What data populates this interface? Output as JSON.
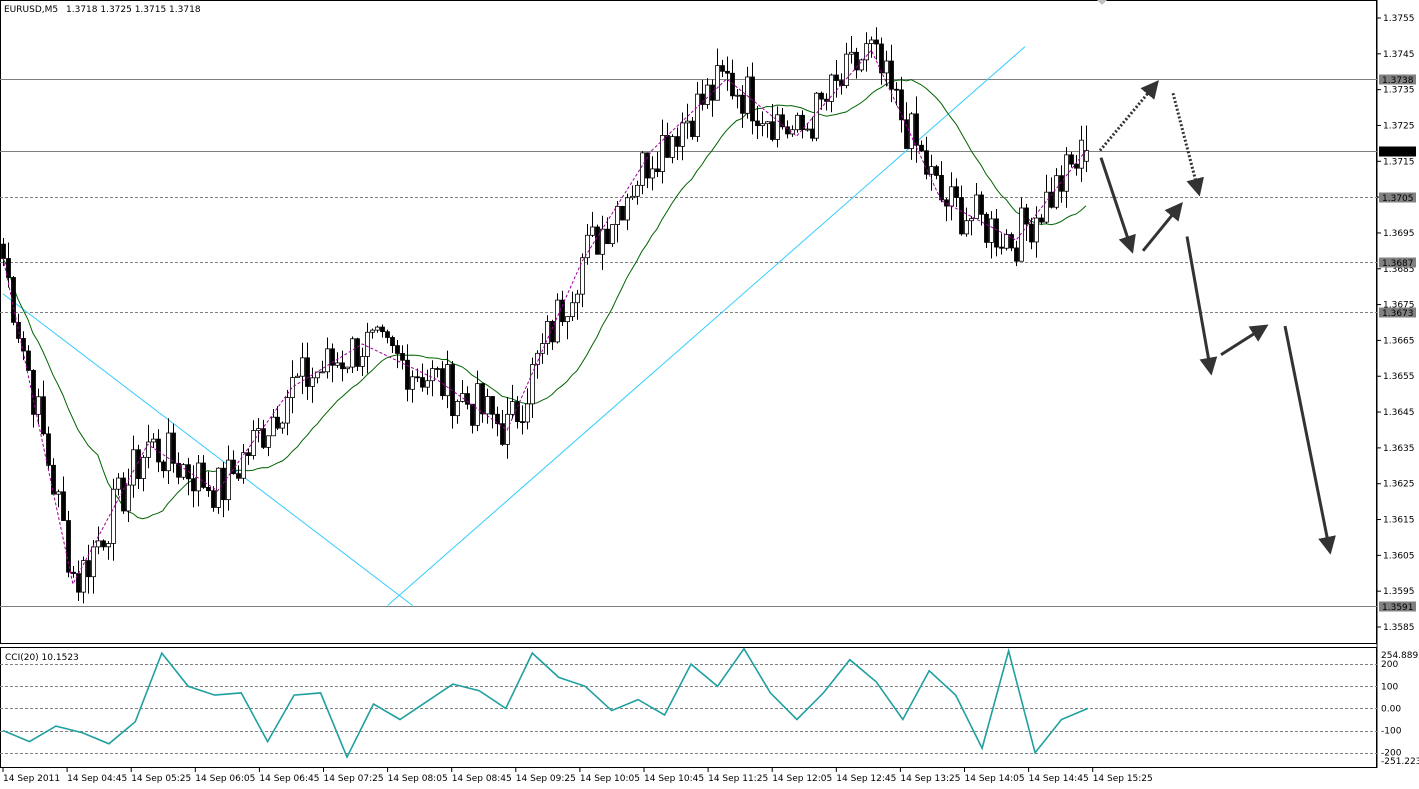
{
  "header": {
    "symbol": "EURUSD,M5",
    "ohlc": "1.3718 1.3725 1.3715 1.3718"
  },
  "indicator": {
    "label": "CCI(20) 10.1523",
    "max_label": "254.8892",
    "min_label": "-251.223"
  },
  "colors": {
    "bull_fill": "#ffffff",
    "bear_fill": "#000000",
    "candle_outline": "#000000",
    "zigzag": "#a000a0",
    "ma": "#006400",
    "trendline": "#33ccff",
    "cci": "#20a0a0",
    "hline": "#808080",
    "arrow": "#333333"
  },
  "chart_data": [
    {
      "type": "candlestick",
      "title": "EURUSD,M5",
      "ylim": [
        1.3585,
        1.3758
      ],
      "yticks": [
        "1.3755",
        "1.3745",
        "1.3735",
        "1.3725",
        "1.3715",
        "1.3705",
        "1.3695",
        "1.3685",
        "1.3675",
        "1.3665",
        "1.3655",
        "1.3645",
        "1.3635",
        "1.3625",
        "1.3615",
        "1.3605",
        "1.3595",
        "1.3585"
      ],
      "xticks": [
        "14 Sep 2011",
        "14 Sep 04:45",
        "14 Sep 05:25",
        "14 Sep 06:05",
        "14 Sep 06:45",
        "14 Sep 07:25",
        "14 Sep 08:05",
        "14 Sep 08:45",
        "14 Sep 09:25",
        "14 Sep 10:05",
        "14 Sep 10:45",
        "14 Sep 11:25",
        "14 Sep 12:05",
        "14 Sep 12:45",
        "14 Sep 13:25",
        "14 Sep 14:05",
        "14 Sep 14:45",
        "14 Sep 15:25"
      ],
      "anchor_prices": [
        1.3688,
        1.3597,
        1.3636,
        1.3623,
        1.3652,
        1.3664,
        1.3654,
        1.364,
        1.3687,
        1.3718,
        1.3738,
        1.3722,
        1.3746,
        1.3704,
        1.3693,
        1.3718
      ],
      "horizontal_levels": [
        {
          "value": 1.3738,
          "label": "1.3738",
          "style": "solid"
        },
        {
          "value": 1.3718,
          "label": "1.3718",
          "style": "solid",
          "highlight": true
        },
        {
          "value": 1.3705,
          "label": "1.3705",
          "style": "dashed"
        },
        {
          "value": 1.3687,
          "label": "1.3687",
          "style": "dashed"
        },
        {
          "value": 1.3673,
          "label": "1.3673",
          "style": "dashed"
        },
        {
          "value": 1.3591,
          "label": "1.3591",
          "style": "solid"
        }
      ],
      "trendlines": [
        {
          "from": [
            "14 Sep 2011",
            1.3678
          ],
          "to": [
            "14 Sep 08:05",
            1.3591
          ]
        },
        {
          "from": [
            "14 Sep 08:05",
            1.3591
          ],
          "to": [
            "14 Sep 14:05",
            1.3747
          ]
        }
      ],
      "projection_arrows": [
        {
          "style": "dotted",
          "from": 1.3718,
          "to": 1.3737
        },
        {
          "style": "dotted",
          "from": 1.3734,
          "to": 1.3706
        },
        {
          "style": "solid",
          "from": 1.3716,
          "to": 1.369
        },
        {
          "style": "solid",
          "from": 1.369,
          "to": 1.3703
        },
        {
          "style": "solid",
          "from": 1.3694,
          "to": 1.3656
        },
        {
          "style": "solid",
          "from": 1.3661,
          "to": 1.3669
        },
        {
          "style": "solid",
          "from": 1.3669,
          "to": 1.3606
        }
      ]
    },
    {
      "type": "line",
      "title": "CCI(20) 10.1523",
      "ylim": [
        -251.223,
        254.8892
      ],
      "yticks": [
        "254.8892",
        "200",
        "100",
        "0.00",
        "-100",
        "-200",
        "-251.223"
      ],
      "levels": [
        200,
        100,
        0,
        -100,
        -200
      ],
      "anchor_values": [
        -100,
        -150,
        -80,
        -110,
        -160,
        -60,
        250,
        100,
        60,
        70,
        -150,
        60,
        70,
        -220,
        20,
        -50,
        30,
        110,
        80,
        0,
        250,
        140,
        100,
        -10,
        40,
        -30,
        200,
        100,
        270,
        70,
        -50,
        70,
        220,
        120,
        -50,
        170,
        60,
        -180,
        260,
        -200,
        -50,
        0
      ]
    }
  ]
}
